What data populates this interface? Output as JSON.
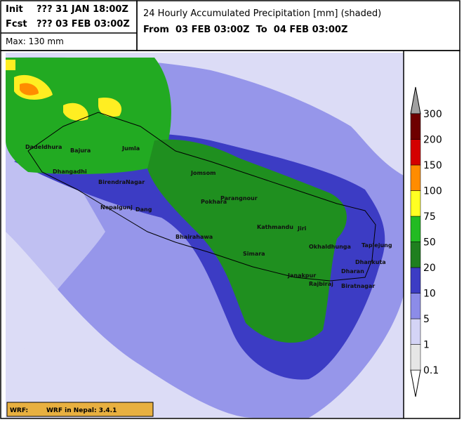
{
  "header": {
    "init_label": "Init",
    "init_value": "??? 31 JAN 18:00Z",
    "fcst_label": "Fcst",
    "fcst_value": "??? 03 FEB 03:00Z",
    "max": "Max: 130 mm",
    "title": "24 Hourly Accumulated Precipitation [mm] (shaded)",
    "period": "From  03 FEB 03:00Z  To  04 FEB 03:00Z"
  },
  "cities": [
    "Dadeldhura",
    "Bajura",
    "Jumla",
    "Dhangadhi",
    "BirendraNagar",
    "Nepalgunj",
    "Dang",
    "Jomsom",
    "Pokhara",
    "Parangnour",
    "Bhairahawa",
    "Simara",
    "Kathmandu",
    "Jiri",
    "Okhaldhunga",
    "Taplejung",
    "Dhankuta",
    "Dharan",
    "Janakpur",
    "Rajbiraj",
    "Biratnagar"
  ],
  "legend": {
    "levels": [
      0.1,
      1,
      5,
      10,
      20,
      50,
      75,
      100,
      150,
      200,
      300
    ],
    "colors": [
      "#e6e6e6",
      "#d4d4f6",
      "#8c8ce8",
      "#3c3cc4",
      "#1f7f1f",
      "#22bb22",
      "#ffff22",
      "#ff8c00",
      "#d40000",
      "#6e0000"
    ],
    "top_color": "#a0a0a0",
    "bottom_color": "#ffffff"
  },
  "footer": {
    "label": "WRF:",
    "version": "WRF in Nepal: 3.4.1"
  }
}
